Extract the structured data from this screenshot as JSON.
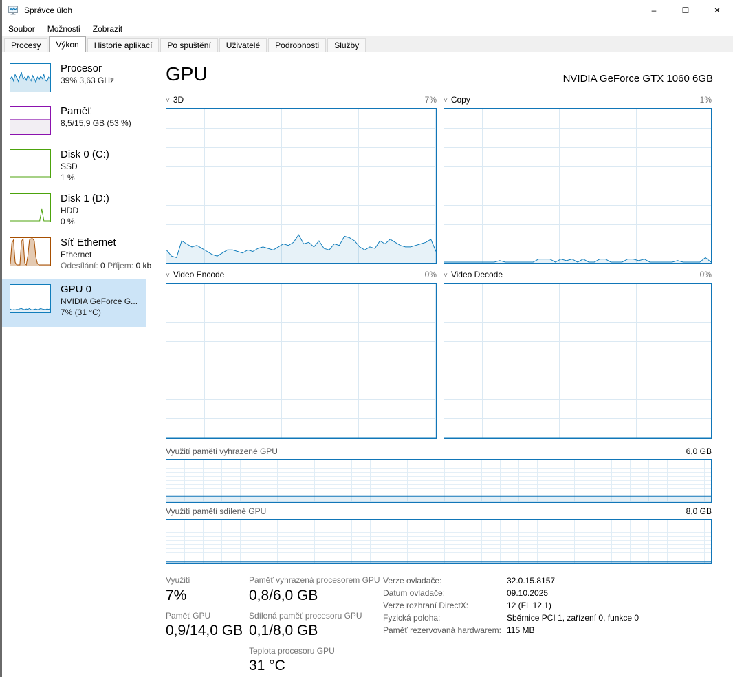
{
  "window": {
    "title": "Správce úloh",
    "controls": {
      "minimize": "–",
      "maximize": "☐",
      "close": "✕"
    }
  },
  "menu": {
    "items": [
      {
        "label": "Soubor"
      },
      {
        "label": "Možnosti"
      },
      {
        "label": "Zobrazit"
      }
    ]
  },
  "tabs": [
    {
      "label": "Procesy",
      "active": false
    },
    {
      "label": "Výkon",
      "active": true
    },
    {
      "label": "Historie aplikací",
      "active": false
    },
    {
      "label": "Po spuštění",
      "active": false
    },
    {
      "label": "Uživatelé",
      "active": false
    },
    {
      "label": "Podrobnosti",
      "active": false
    },
    {
      "label": "Služby",
      "active": false
    }
  ],
  "sidebar": {
    "items": [
      {
        "id": "cpu",
        "title": "Procesor",
        "line2": "39%  3,63 GHz",
        "color": "#117dbb"
      },
      {
        "id": "memory",
        "title": "Paměť",
        "line2": "8,5/15,9 GB (53 %)",
        "color": "#8b12ae"
      },
      {
        "id": "disk0",
        "title": "Disk 0 (C:)",
        "line2": "SSD",
        "line3": "1 %",
        "color": "#4ca30c"
      },
      {
        "id": "disk1",
        "title": "Disk 1 (D:)",
        "line2": "HDD",
        "line3": "0 %",
        "color": "#4ca30c"
      },
      {
        "id": "network",
        "title": "Síť Ethernet",
        "line2": "Ethernet",
        "send_label": "Odesílání:",
        "send_value": "0",
        "recv_label": "Příjem:",
        "recv_value": "0 kb",
        "color": "#a74f01"
      },
      {
        "id": "gpu0",
        "title": "GPU 0",
        "line2": "NVIDIA GeForce G...",
        "line3": "7% (31 °C)",
        "color": "#117dbb",
        "selected": true
      }
    ]
  },
  "main": {
    "page_title": "GPU",
    "device_name": "NVIDIA GeForce GTX 1060 6GB",
    "charts": [
      {
        "name": "3D",
        "value_label": "7%"
      },
      {
        "name": "Copy",
        "value_label": "1%"
      },
      {
        "name": "Video Encode",
        "value_label": "0%"
      },
      {
        "name": "Video Decode",
        "value_label": "0%"
      }
    ],
    "memory_charts": [
      {
        "label": "Využití paměti vyhrazené GPU",
        "max_label": "6,0 GB"
      },
      {
        "label": "Využití paměti sdílené GPU",
        "max_label": "8,0 GB"
      }
    ],
    "stats": {
      "usage_label": "Využití",
      "usage_value": "7%",
      "gpu_mem_label": "Paměť GPU",
      "gpu_mem_value": "0,9/14,0 GB",
      "dedicated_label": "Paměť vyhrazená procesorem GPU",
      "dedicated_value": "0,8/6,0 GB",
      "shared_label": "Sdílená paměť procesoru GPU",
      "shared_value": "0,1/8,0 GB",
      "temp_label": "Teplota procesoru GPU",
      "temp_value": "31 °C",
      "kv": [
        {
          "label": "Verze ovladače:",
          "value": "32.0.15.8157"
        },
        {
          "label": "Datum ovladače:",
          "value": "09.10.2025"
        },
        {
          "label": "Verze rozhraní DirectX:",
          "value": "12 (FL 12.1)"
        },
        {
          "label": "Fyzická poloha:",
          "value": "Sběrnice PCI 1, zařízení 0, funkce 0"
        },
        {
          "label": "Paměť rezervovaná hardwarem:",
          "value": "115 MB"
        }
      ]
    }
  },
  "colors": {
    "accent_blue": "#117dbb",
    "memory_purple": "#8b12ae",
    "disk_green": "#4ca30c",
    "network_brown": "#a74f01",
    "selected_bg": "#cce4f7",
    "grid_blue": "#dbe9f3"
  },
  "chart_data": {
    "type": "area",
    "gpu_3d": {
      "title": "3D",
      "ylim": [
        0,
        100
      ],
      "current": 7,
      "color": "#117dbb",
      "fill": "rgba(17,125,187,0.10)",
      "values": [
        8,
        4,
        3,
        14,
        12,
        10,
        11,
        9,
        7,
        5,
        4,
        6,
        8,
        8,
        7,
        6,
        8,
        7,
        9,
        10,
        9,
        8,
        10,
        12,
        11,
        13,
        18,
        12,
        13,
        10,
        14,
        9,
        8,
        12,
        11,
        17,
        16,
        14,
        10,
        8,
        10,
        9,
        14,
        12,
        15,
        13,
        11,
        10,
        10,
        11,
        12,
        13,
        15,
        7
      ]
    },
    "copy": {
      "title": "Copy",
      "ylim": [
        0,
        100
      ],
      "current": 1,
      "color": "#117dbb",
      "fill": "rgba(17,125,187,0.10)",
      "values": [
        0,
        0,
        0,
        0,
        0,
        0,
        0,
        0,
        0,
        0,
        1,
        0,
        0,
        0,
        0,
        0,
        0,
        2,
        2,
        2,
        0,
        2,
        1,
        2,
        0,
        2,
        0,
        0,
        2,
        2,
        0,
        0,
        0,
        2,
        2,
        1,
        2,
        0,
        0,
        0,
        0,
        0,
        1,
        0,
        0,
        0,
        0,
        3,
        0
      ]
    },
    "video_encode": {
      "title": "Video Encode",
      "ylim": [
        0,
        100
      ],
      "current": 0,
      "color": "#117dbb",
      "fill": "none",
      "values": [
        0,
        0,
        0,
        0,
        0,
        0,
        0,
        0,
        0,
        0,
        0,
        0,
        0,
        0,
        0,
        0,
        0,
        0,
        0,
        0
      ]
    },
    "video_decode": {
      "title": "Video Decode",
      "ylim": [
        0,
        100
      ],
      "current": 0,
      "color": "#117dbb",
      "fill": "none",
      "values": [
        0,
        0,
        0,
        0,
        0,
        0,
        0,
        0,
        0,
        0,
        0,
        0,
        0,
        0,
        0,
        0,
        0,
        0,
        0,
        0
      ]
    },
    "dedicated_memory": {
      "title": "Využití paměti vyhrazené GPU",
      "ylim_gb": [
        0,
        6.0
      ],
      "current_gb": 0.8,
      "color": "#1176b8",
      "fill": "rgba(17,125,187,0.12)",
      "values": [
        13,
        13,
        13,
        13,
        13,
        13,
        13,
        13,
        13,
        13
      ]
    },
    "shared_memory": {
      "title": "Využití paměti sdílené GPU",
      "ylim_gb": [
        0,
        8.0
      ],
      "current_gb": 0.1,
      "color": "#1176b8",
      "fill": "rgba(17,125,187,0.12)",
      "values": [
        2,
        2,
        2,
        2,
        2,
        2,
        2,
        2,
        2,
        2
      ]
    },
    "cpu_mini": {
      "color": "#117dbb",
      "fill": "rgba(17,125,187,0.18)",
      "values": [
        45,
        55,
        38,
        62,
        50,
        36,
        55,
        70,
        44,
        52,
        40,
        60,
        48,
        38,
        58,
        46,
        33,
        52,
        42,
        56,
        46,
        62,
        40,
        36,
        52,
        44
      ]
    },
    "memory_mini": {
      "color": "#8b12ae",
      "fill": "#f2eef3",
      "values": [
        53,
        53,
        53,
        53,
        53,
        53,
        53,
        53,
        53,
        53
      ]
    },
    "disk0_mini": {
      "color": "#4ca30c",
      "fill": "none",
      "values": [
        0,
        0,
        0,
        0,
        0,
        0,
        0,
        0,
        0,
        0,
        0,
        0,
        0,
        0,
        0,
        0,
        0,
        0,
        0,
        0
      ]
    },
    "disk1_mini": {
      "color": "#4ca30c",
      "fill": "none",
      "values": [
        0,
        0,
        0,
        0,
        0,
        0,
        0,
        0,
        0,
        0,
        0,
        0,
        0,
        0,
        0,
        45,
        0,
        0,
        0,
        0
      ]
    },
    "network_mini": {
      "color": "#a74f01",
      "fill": "rgba(167,79,1,0.30)",
      "values": [
        5,
        85,
        95,
        10,
        0,
        0,
        0,
        90,
        100,
        8,
        0,
        35,
        95,
        100,
        100,
        92,
        30,
        5,
        0,
        0,
        0,
        0,
        0,
        0,
        0,
        0
      ]
    },
    "gpu_mini": {
      "color": "#117dbb",
      "fill": "rgba(17,125,187,0.12)",
      "values": [
        10,
        6,
        8,
        7,
        9,
        8,
        11,
        12,
        9,
        8,
        10,
        9,
        12,
        8,
        7,
        9,
        10,
        8,
        9,
        12,
        10,
        9,
        8,
        10,
        9,
        11
      ]
    }
  }
}
